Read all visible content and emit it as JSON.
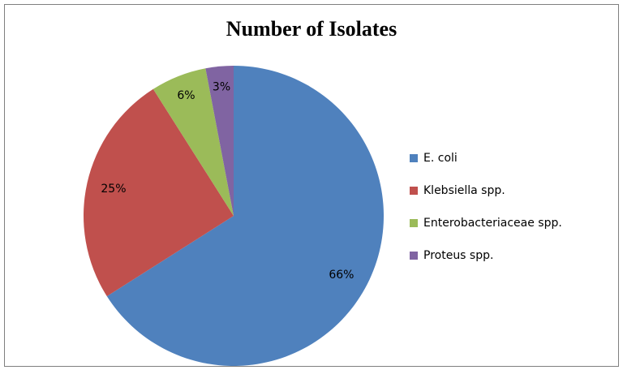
{
  "chart_data": {
    "type": "pie",
    "title": "Number of Isolates",
    "categories": [
      "E. coli",
      "Klebsiella spp.",
      "Enterobacteriaceae spp.",
      "Proteus spp."
    ],
    "values": [
      66,
      25,
      6,
      3
    ],
    "value_labels": [
      "66%",
      "25%",
      "6%",
      "3%"
    ],
    "colors": [
      "#4f81bd",
      "#c0504d",
      "#9bbb59",
      "#8064a2"
    ],
    "legend": "right"
  }
}
